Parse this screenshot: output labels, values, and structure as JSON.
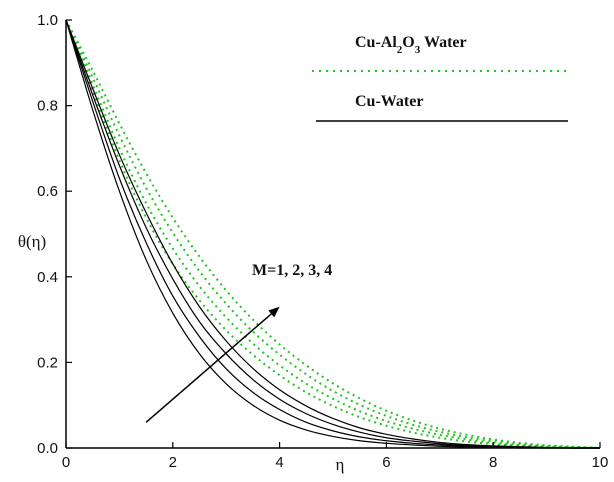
{
  "chart_data": {
    "type": "line",
    "xlabel": "η",
    "ylabel": "θ(η)",
    "xlim": [
      0,
      10
    ],
    "ylim": [
      0,
      1
    ],
    "xticks": [
      "0",
      "2",
      "4",
      "6",
      "8",
      "10"
    ],
    "yticks": [
      "0.0",
      "0.2",
      "0.4",
      "0.6",
      "0.8",
      "1.0"
    ],
    "grid": false,
    "legend_position": "top-right",
    "legend": [
      {
        "label": "Cu-Al₂O₃ Water",
        "style": "dotted",
        "color": "#22c322"
      },
      {
        "label": "Cu-Water",
        "style": "solid",
        "color": "#000000"
      }
    ],
    "annotation": {
      "text": "M=1, 2, 3, 4",
      "arrow_from": [
        1.5,
        0.06
      ],
      "arrow_to": [
        4.0,
        0.33
      ]
    },
    "x": [
      0,
      0.5,
      1,
      1.5,
      2,
      2.5,
      3,
      3.5,
      4,
      4.5,
      5,
      5.5,
      6,
      6.5,
      7,
      7.5,
      8,
      8.5,
      9,
      9.5,
      10
    ],
    "series": [
      {
        "group": "Cu-Al₂O₃ Water",
        "M": 1,
        "color": "#22c322",
        "dash": "dotted",
        "values": [
          1.0,
          0.834,
          0.672,
          0.538,
          0.43,
          0.345,
          0.275,
          0.218,
          0.17,
          0.13,
          0.098,
          0.072,
          0.052,
          0.036,
          0.024,
          0.015,
          0.009,
          0.005,
          0.002,
          0.001,
          0.0
        ]
      },
      {
        "group": "Cu-Al₂O₃ Water",
        "M": 2,
        "color": "#22c322",
        "dash": "dotted",
        "values": [
          1.0,
          0.85,
          0.7,
          0.572,
          0.466,
          0.378,
          0.305,
          0.244,
          0.193,
          0.15,
          0.115,
          0.086,
          0.063,
          0.045,
          0.031,
          0.02,
          0.012,
          0.007,
          0.004,
          0.002,
          0.0
        ]
      },
      {
        "group": "Cu-Al₂O₃ Water",
        "M": 3,
        "color": "#22c322",
        "dash": "dotted",
        "values": [
          1.0,
          0.866,
          0.73,
          0.608,
          0.503,
          0.413,
          0.337,
          0.272,
          0.218,
          0.172,
          0.133,
          0.101,
          0.075,
          0.054,
          0.038,
          0.025,
          0.016,
          0.009,
          0.005,
          0.002,
          0.0
        ]
      },
      {
        "group": "Cu-Al₂O₃ Water",
        "M": 4,
        "color": "#22c322",
        "dash": "dotted",
        "values": [
          1.0,
          0.882,
          0.758,
          0.642,
          0.538,
          0.447,
          0.368,
          0.3,
          0.242,
          0.193,
          0.151,
          0.116,
          0.087,
          0.064,
          0.045,
          0.031,
          0.02,
          0.012,
          0.006,
          0.003,
          0.0
        ]
      },
      {
        "group": "Cu-Water",
        "M": 1,
        "color": "#000000",
        "dash": "solid",
        "values": [
          1.0,
          0.79,
          0.6,
          0.44,
          0.315,
          0.22,
          0.15,
          0.1,
          0.065,
          0.042,
          0.027,
          0.017,
          0.011,
          0.007,
          0.004,
          0.002,
          0.001,
          0.0,
          0.0,
          0.0,
          0.0
        ]
      },
      {
        "group": "Cu-Water",
        "M": 2,
        "color": "#000000",
        "dash": "solid",
        "values": [
          1.0,
          0.81,
          0.63,
          0.48,
          0.355,
          0.26,
          0.185,
          0.13,
          0.09,
          0.06,
          0.04,
          0.026,
          0.017,
          0.011,
          0.007,
          0.004,
          0.002,
          0.001,
          0.0,
          0.0,
          0.0
        ]
      },
      {
        "group": "Cu-Water",
        "M": 3,
        "color": "#000000",
        "dash": "solid",
        "values": [
          1.0,
          0.825,
          0.66,
          0.515,
          0.395,
          0.295,
          0.22,
          0.16,
          0.114,
          0.08,
          0.055,
          0.037,
          0.024,
          0.016,
          0.01,
          0.006,
          0.003,
          0.002,
          0.001,
          0.0,
          0.0
        ]
      },
      {
        "group": "Cu-Water",
        "M": 4,
        "color": "#000000",
        "dash": "solid",
        "values": [
          1.0,
          0.84,
          0.685,
          0.55,
          0.43,
          0.33,
          0.25,
          0.186,
          0.136,
          0.098,
          0.069,
          0.047,
          0.032,
          0.021,
          0.013,
          0.008,
          0.005,
          0.003,
          0.001,
          0.0,
          0.0
        ]
      }
    ]
  }
}
